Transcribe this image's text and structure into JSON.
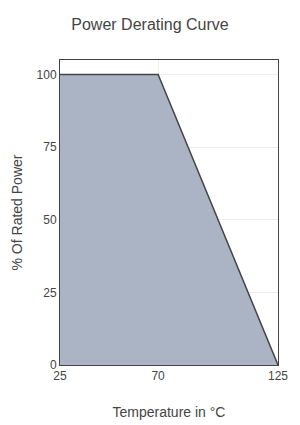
{
  "chart_data": {
    "type": "area",
    "title": "Power Derating Curve",
    "x": [
      25,
      70,
      125
    ],
    "values": [
      100,
      100,
      0
    ],
    "xlabel": "Temperature in °C",
    "ylabel": "% Of Rated Power",
    "color": "#aab4c4",
    "xlim": [
      25,
      125
    ],
    "ylim": [
      0,
      105
    ],
    "xticks": [
      25,
      70,
      125
    ],
    "yticks": [
      0,
      25,
      50,
      75,
      100
    ],
    "grid": true
  }
}
